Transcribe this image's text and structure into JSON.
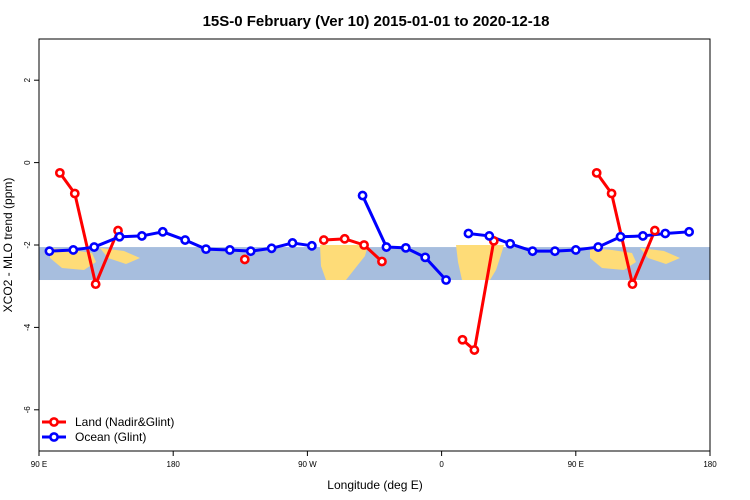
{
  "chart_data": {
    "type": "line",
    "title": "15S-0 February (Ver 10)   2015-01-01 to 2020-12-18",
    "xlabel": "Longitude (deg E)",
    "ylabel": "XCO2 - MLO trend (ppm)",
    "xlim": [
      90,
      540
    ],
    "ylim": [
      -7.0,
      3.0
    ],
    "x_ticks": [
      {
        "value": 90,
        "label": "90 E"
      },
      {
        "value": 180,
        "label": "180"
      },
      {
        "value": 270,
        "label": "90 W"
      },
      {
        "value": 360,
        "label": "0"
      },
      {
        "value": 450,
        "label": "90 E"
      },
      {
        "value": 540,
        "label": "180"
      }
    ],
    "y_ticks": [
      {
        "value": 2,
        "label": "2"
      },
      {
        "value": 0,
        "label": "0"
      },
      {
        "value": -2,
        "label": "-2"
      },
      {
        "value": -4,
        "label": "-4"
      },
      {
        "value": -6,
        "label": "-6"
      }
    ],
    "map_band": {
      "y_range": [
        -2.05,
        -2.85
      ],
      "ocean_color": "#a7bede",
      "land_color": "#fedc78"
    },
    "legend_position": "bottom-left",
    "series": [
      {
        "name": "Land (Nadir&Glint)",
        "color": "#ff0000",
        "segments": [
          [
            [
              104,
              -0.25
            ],
            [
              114,
              -0.75
            ],
            [
              128,
              -2.95
            ],
            [
              143,
              -1.65
            ]
          ],
          [
            [
              228,
              -2.35
            ]
          ],
          [
            [
              281,
              -1.88
            ],
            [
              295,
              -1.85
            ],
            [
              308,
              -2.0
            ],
            [
              320,
              -2.4
            ]
          ],
          [
            [
              374,
              -4.3
            ],
            [
              382,
              -4.55
            ],
            [
              395,
              -1.9
            ]
          ],
          [
            [
              464,
              -0.25
            ],
            [
              474,
              -0.75
            ],
            [
              488,
              -2.95
            ],
            [
              503,
              -1.65
            ]
          ]
        ]
      },
      {
        "name": "Ocean (Glint)",
        "color": "#0000ff",
        "segments": [
          [
            [
              97,
              -2.15
            ],
            [
              113,
              -2.12
            ],
            [
              127,
              -2.05
            ],
            [
              144,
              -1.8
            ],
            [
              159,
              -1.78
            ],
            [
              173,
              -1.68
            ],
            [
              188,
              -1.88
            ],
            [
              202,
              -2.1
            ],
            [
              218,
              -2.12
            ],
            [
              232,
              -2.15
            ],
            [
              246,
              -2.08
            ],
            [
              260,
              -1.95
            ],
            [
              273,
              -2.02
            ]
          ],
          [
            [
              307,
              -0.8
            ],
            [
              323,
              -2.05
            ],
            [
              336,
              -2.07
            ],
            [
              349,
              -2.3
            ],
            [
              363,
              -2.85
            ]
          ],
          [
            [
              378,
              -1.72
            ],
            [
              392,
              -1.78
            ],
            [
              406,
              -1.97
            ],
            [
              421,
              -2.15
            ],
            [
              436,
              -2.15
            ],
            [
              450,
              -2.12
            ],
            [
              465,
              -2.05
            ],
            [
              480,
              -1.8
            ],
            [
              495,
              -1.78
            ],
            [
              510,
              -1.72
            ],
            [
              526,
              -1.68
            ]
          ]
        ]
      }
    ]
  }
}
